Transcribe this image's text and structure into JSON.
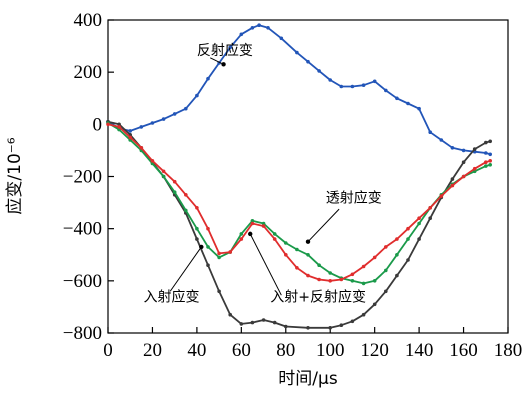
{
  "chart_data": {
    "type": "line",
    "xlabel": "时间/μs",
    "ylabel": "应变/10⁻⁶",
    "xlim": [
      0,
      180
    ],
    "ylim": [
      -800,
      400
    ],
    "xticks": [
      0,
      20,
      40,
      60,
      80,
      100,
      120,
      140,
      160,
      180
    ],
    "yticks": [
      400,
      200,
      0,
      -200,
      -400,
      -600,
      -800
    ],
    "grid": false,
    "series": [
      {
        "name": "反射应变",
        "color": "#2255b8",
        "x": [
          0,
          5,
          10,
          15,
          20,
          25,
          30,
          35,
          40,
          45,
          50,
          55,
          60,
          65,
          68,
          72,
          78,
          85,
          90,
          95,
          100,
          105,
          110,
          115,
          120,
          125,
          130,
          135,
          140,
          145,
          150,
          155,
          160,
          165,
          170,
          172
        ],
        "y": [
          10,
          -15,
          -25,
          -10,
          5,
          20,
          40,
          60,
          110,
          175,
          235,
          295,
          345,
          370,
          380,
          370,
          330,
          275,
          240,
          205,
          170,
          145,
          145,
          150,
          165,
          130,
          100,
          80,
          60,
          -30,
          -60,
          -90,
          -100,
          -105,
          -110,
          -115
        ]
      },
      {
        "name": "入射应变",
        "color": "#3a3a3a",
        "x": [
          0,
          5,
          10,
          15,
          20,
          25,
          30,
          35,
          40,
          45,
          50,
          55,
          60,
          65,
          70,
          75,
          80,
          90,
          100,
          105,
          110,
          115,
          120,
          125,
          130,
          135,
          140,
          145,
          150,
          155,
          160,
          165,
          170,
          172
        ],
        "y": [
          10,
          0,
          -40,
          -90,
          -145,
          -200,
          -270,
          -340,
          -440,
          -540,
          -640,
          -730,
          -765,
          -760,
          -750,
          -760,
          -775,
          -780,
          -780,
          -770,
          -755,
          -730,
          -690,
          -640,
          -580,
          -520,
          -440,
          -360,
          -280,
          -210,
          -145,
          -95,
          -70,
          -65
        ]
      },
      {
        "name": "透射应变",
        "color": "#1a9a4a",
        "x": [
          0,
          5,
          10,
          15,
          20,
          25,
          30,
          35,
          40,
          45,
          50,
          55,
          60,
          65,
          70,
          75,
          80,
          85,
          90,
          95,
          100,
          105,
          110,
          115,
          120,
          125,
          130,
          135,
          140,
          145,
          150,
          155,
          160,
          165,
          170,
          172
        ],
        "y": [
          5,
          -20,
          -60,
          -100,
          -150,
          -200,
          -260,
          -330,
          -400,
          -470,
          -510,
          -490,
          -420,
          -370,
          -380,
          -420,
          -455,
          -480,
          -500,
          -540,
          -570,
          -590,
          -600,
          -610,
          -600,
          -560,
          -500,
          -440,
          -380,
          -320,
          -270,
          -230,
          -200,
          -180,
          -160,
          -155
        ]
      },
      {
        "name": "入射+反射应变",
        "color": "#e02d2d",
        "x": [
          0,
          5,
          10,
          15,
          20,
          25,
          30,
          35,
          40,
          45,
          50,
          55,
          60,
          65,
          70,
          75,
          80,
          85,
          90,
          95,
          100,
          105,
          110,
          115,
          120,
          125,
          130,
          135,
          140,
          145,
          150,
          155,
          160,
          165,
          170,
          172
        ],
        "y": [
          0,
          -10,
          -50,
          -90,
          -140,
          -180,
          -220,
          -270,
          -320,
          -400,
          -495,
          -490,
          -440,
          -380,
          -390,
          -440,
          -500,
          -550,
          -580,
          -595,
          -600,
          -595,
          -575,
          -545,
          -510,
          -470,
          -440,
          -400,
          -360,
          -320,
          -275,
          -235,
          -200,
          -170,
          -145,
          -140
        ]
      }
    ],
    "annotations": [
      {
        "text": "反射应变",
        "x": 40,
        "y": 265
      },
      {
        "text": "透射应变",
        "x": 98,
        "y": -300
      },
      {
        "text": "入射应变",
        "x": 16,
        "y": -680
      },
      {
        "text": "入射+反射应变",
        "x": 73,
        "y": -680
      }
    ]
  }
}
